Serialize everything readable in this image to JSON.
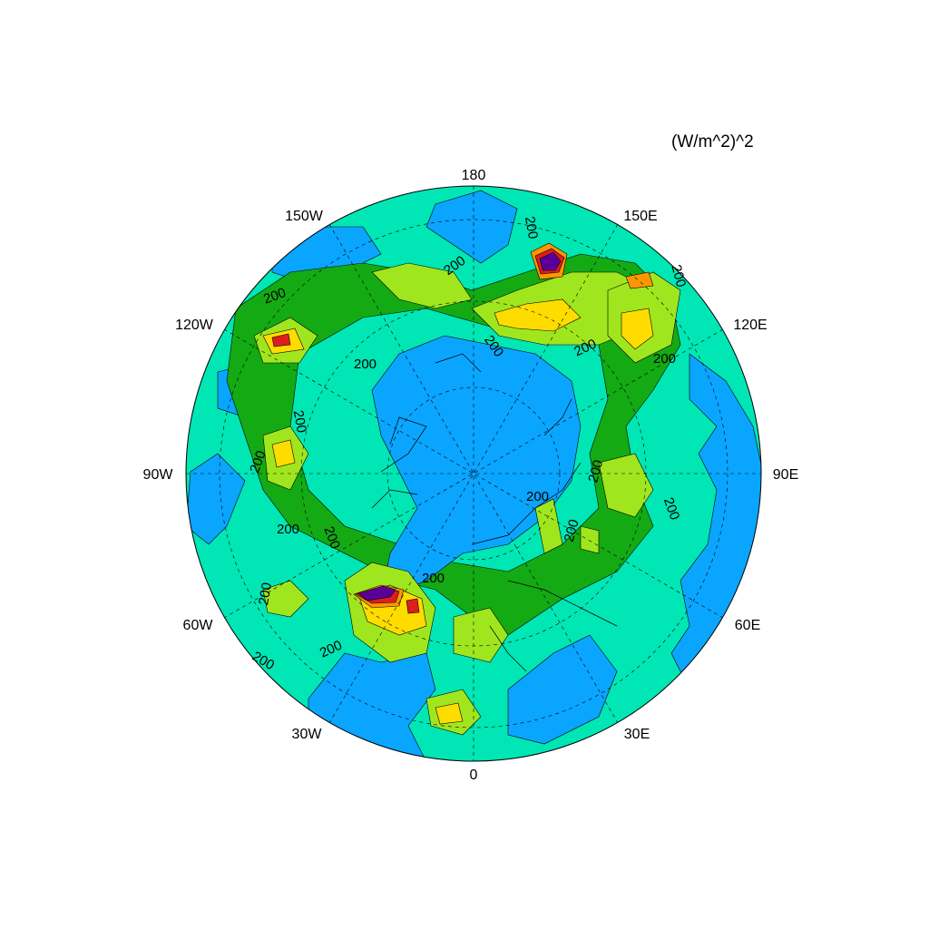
{
  "units": "(W/m^2)^2",
  "longitude_labels": {
    "top": "180",
    "top_left": "150W",
    "top_right": "150E",
    "upper_left": "120W",
    "upper_right": "120E",
    "left": "90W",
    "right": "90E",
    "lower_left": "60W",
    "lower_right": "60E",
    "bottom_left": "30W",
    "bottom_right": "30E",
    "bottom": "0"
  },
  "contour_value_label": "200",
  "colors": {
    "ocean_low": "#0aa5ff",
    "teal": "#00e6b4",
    "green": "#14aa14",
    "yellow_green": "#a0e61e",
    "yellow": "#ffdc00",
    "orange": "#ff9600",
    "red": "#dc1e1e",
    "purple": "#5a0096"
  }
}
